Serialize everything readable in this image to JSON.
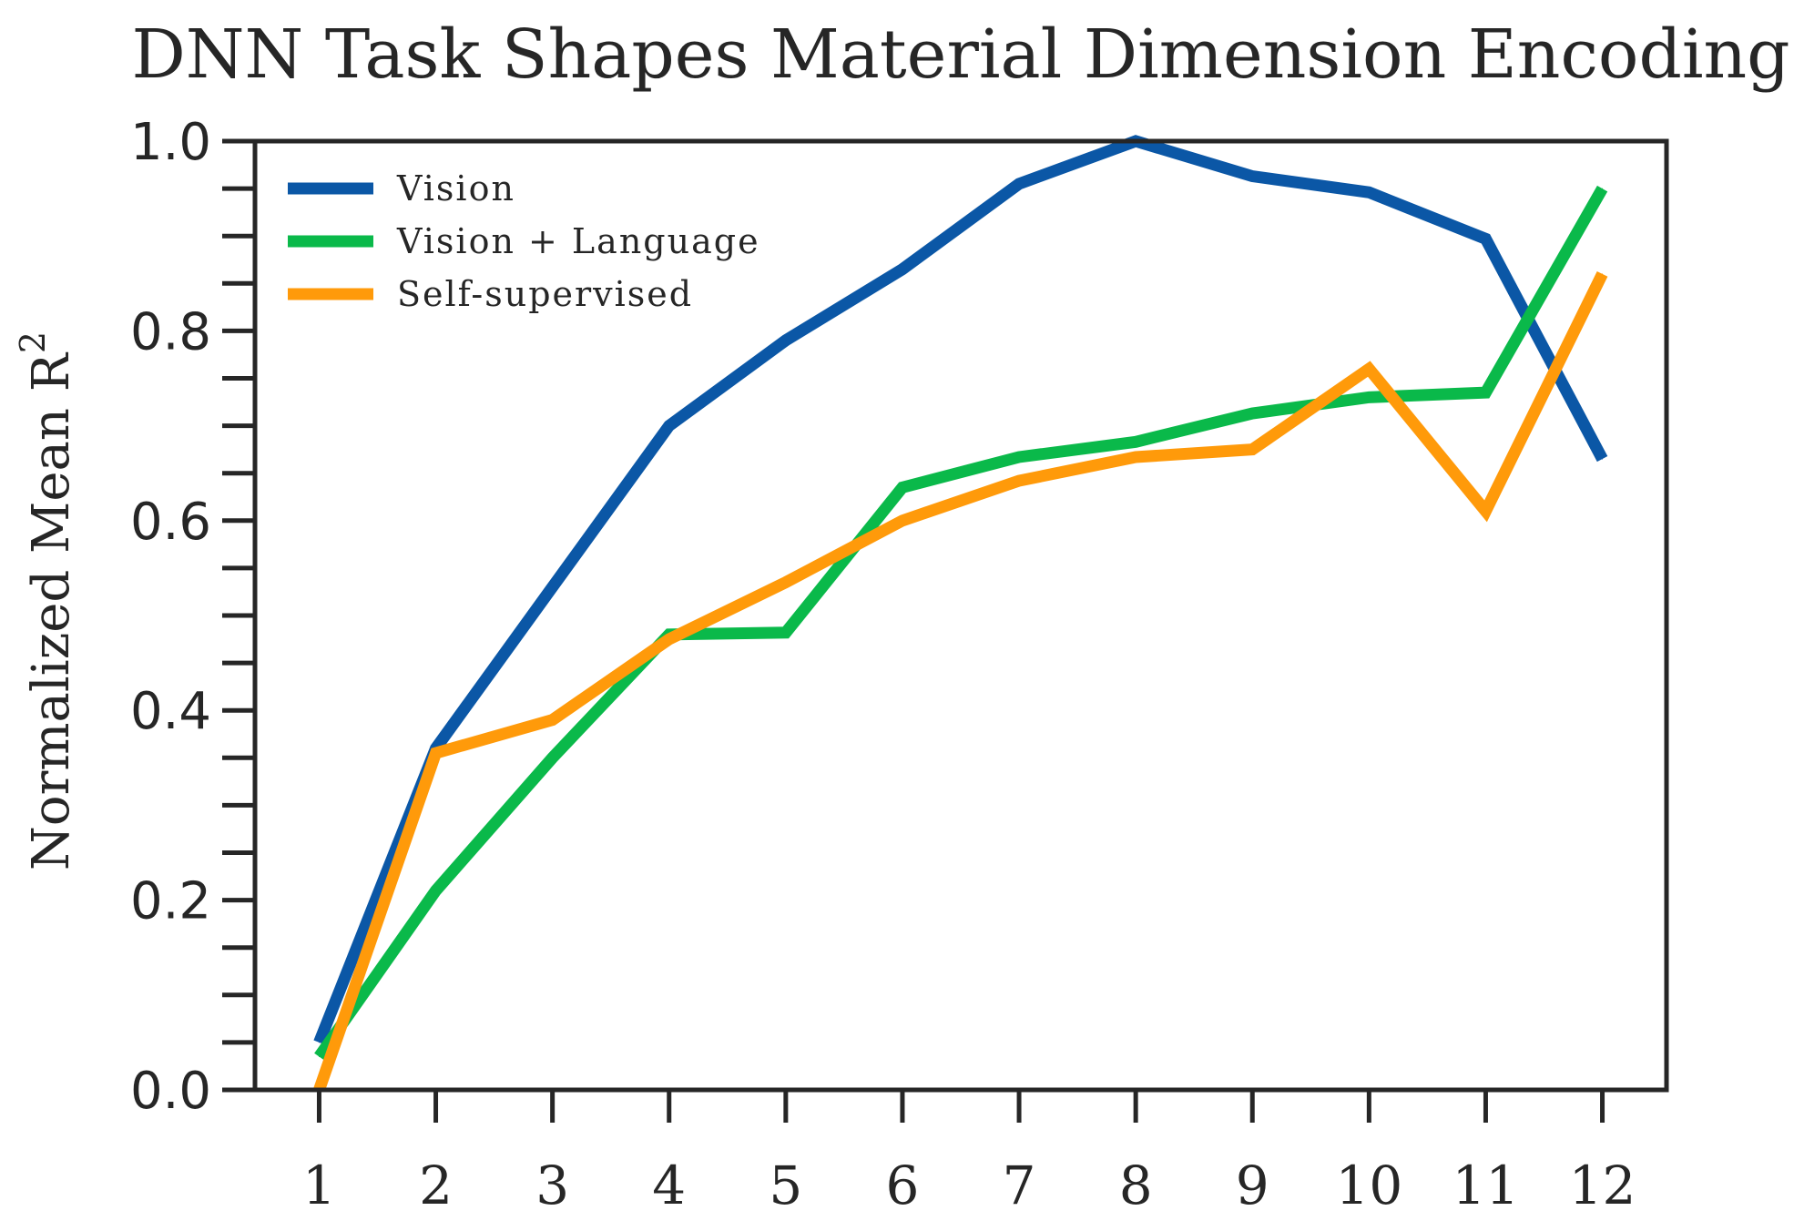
{
  "chart_data": {
    "type": "line",
    "title": "DNN Task Shapes Material Dimension Encoding",
    "xlabel": "",
    "ylabel": "Normalized Mean R",
    "ylabel_superscript": "2",
    "x": [
      1,
      2,
      3,
      4,
      5,
      6,
      7,
      8,
      9,
      10,
      11,
      12
    ],
    "xticks": [
      "1",
      "2",
      "3",
      "4",
      "5",
      "6",
      "7",
      "8",
      "9",
      "10",
      "11",
      "12"
    ],
    "xlim": [
      0.45,
      12.55
    ],
    "ylim": [
      0,
      1
    ],
    "yticks": [
      "0.0",
      "0.2",
      "0.4",
      "0.6",
      "0.8",
      "1.0"
    ],
    "ytick_values": [
      0,
      0.2,
      0.4,
      0.6,
      0.8,
      1.0
    ],
    "yminor_step": 0.05,
    "grid": false,
    "legend_position": "top-left",
    "series": [
      {
        "name": "Vision",
        "color": "#0b57a6",
        "values": [
          0.05,
          0.36,
          0.53,
          0.7,
          0.79,
          0.865,
          0.955,
          1.0,
          0.963,
          0.946,
          0.897,
          0.665
        ]
      },
      {
        "name": "Vision + Language",
        "color": "#0ab94a",
        "values": [
          0.035,
          0.21,
          0.35,
          0.48,
          0.482,
          0.635,
          0.667,
          0.683,
          0.713,
          0.73,
          0.735,
          0.95
        ]
      },
      {
        "name": "Self-supervised",
        "color": "#ff9a0a",
        "values": [
          0.0,
          0.355,
          0.39,
          0.475,
          0.535,
          0.6,
          0.642,
          0.667,
          0.675,
          0.76,
          0.61,
          0.86
        ]
      }
    ]
  }
}
